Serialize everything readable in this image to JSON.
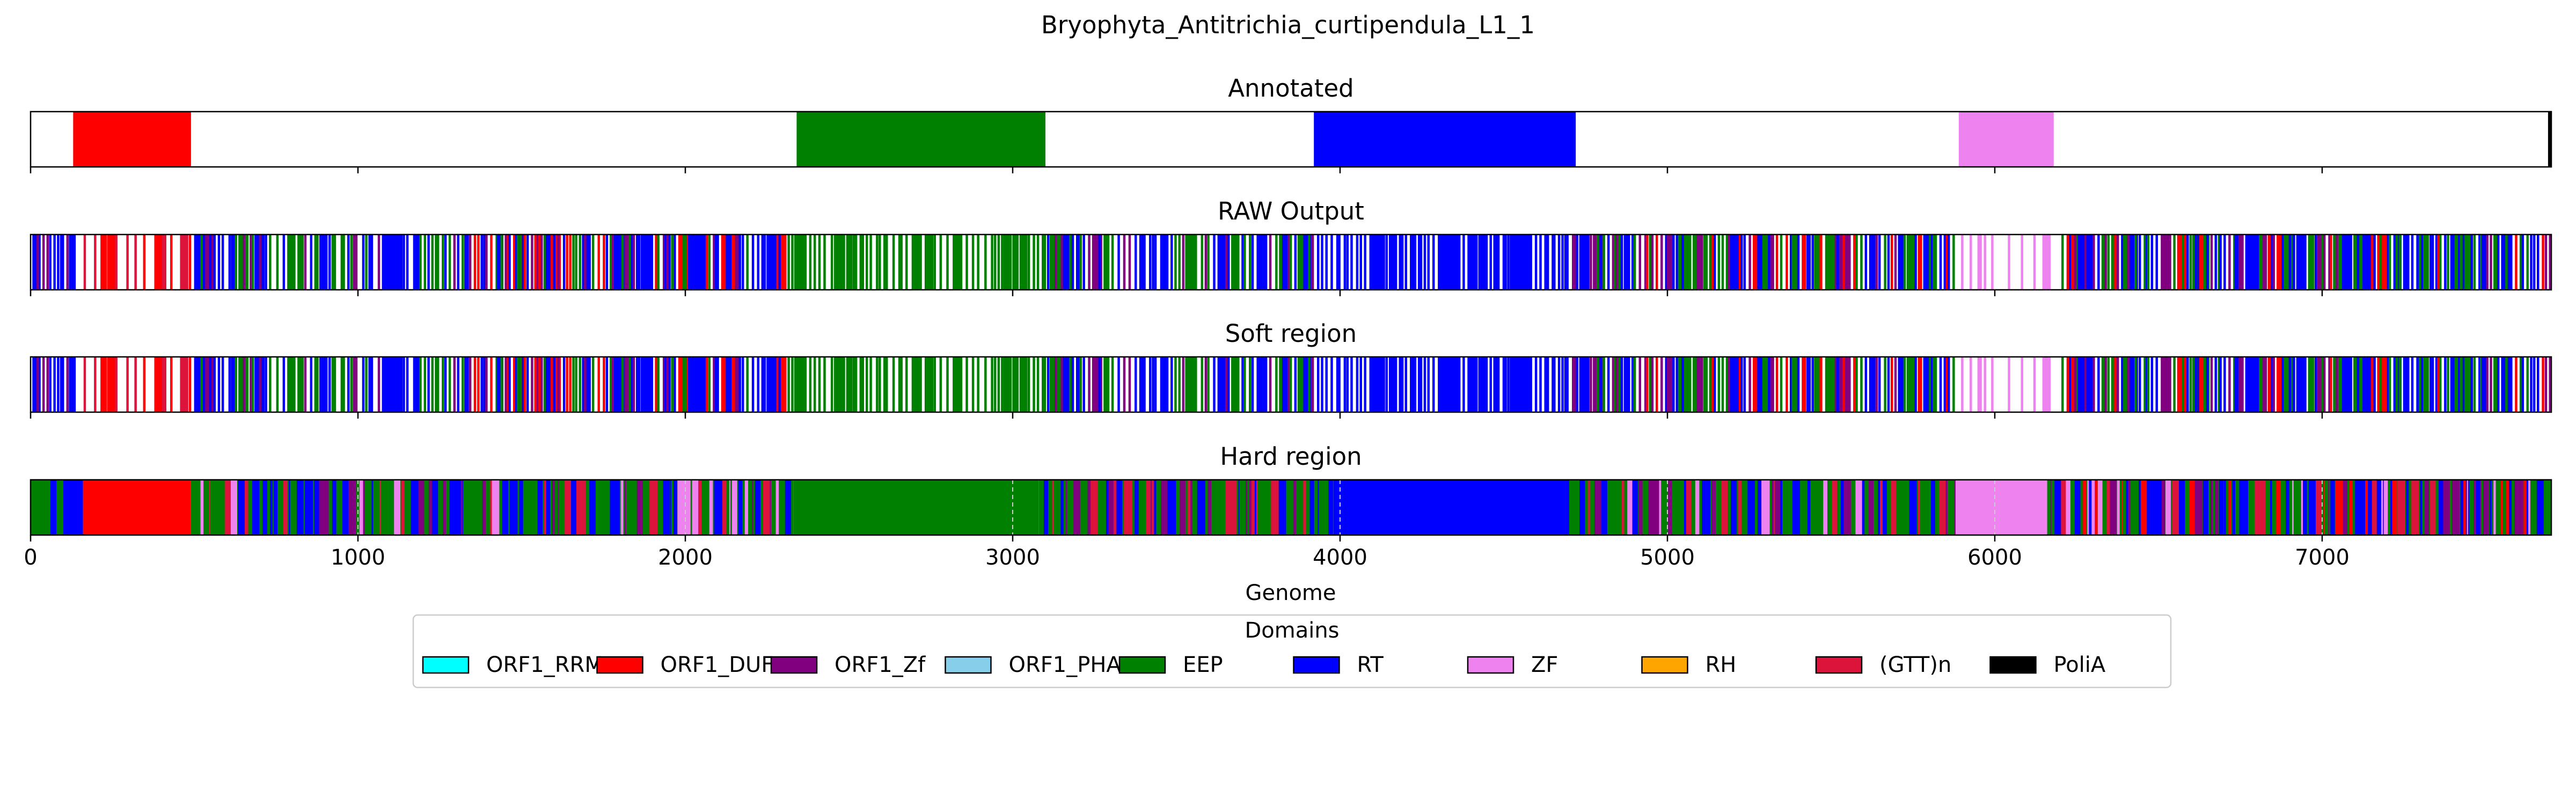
{
  "chart_data": {
    "type": "genome-track",
    "title": "Bryophyta_Antitrichia_curtipendula_L1_1",
    "xlabel": "Genome",
    "xlim": [
      0,
      7700
    ],
    "xticks": [
      0,
      1000,
      2000,
      3000,
      4000,
      5000,
      6000,
      7000
    ],
    "xtick_labels": [
      "0",
      "1000",
      "2000",
      "3000",
      "4000",
      "5000",
      "6000",
      "7000"
    ],
    "legend": {
      "title": "Domains",
      "placement": "bottom-center",
      "entries": [
        {
          "name": "ORF1_RRM",
          "color": "#00ffff"
        },
        {
          "name": "ORF1_DUF",
          "color": "#ff0000"
        },
        {
          "name": "ORF1_Zf",
          "color": "#800080"
        },
        {
          "name": "ORF1_PHA",
          "color": "#87ceeb"
        },
        {
          "name": "EEP",
          "color": "#008000"
        },
        {
          "name": "RT",
          "color": "#0000ff"
        },
        {
          "name": "ZF",
          "color": "#ee82ee"
        },
        {
          "name": "RH",
          "color": "#ffa500"
        },
        {
          "name": "(GTT)n",
          "color": "#dc143c"
        },
        {
          "name": "PoliA",
          "color": "#000000"
        }
      ]
    },
    "panels": [
      {
        "title": "Annotated",
        "mode": "segments",
        "segments": [
          {
            "domain": "ORF1_DUF",
            "start": 130,
            "end": 490
          },
          {
            "domain": "EEP",
            "start": 2340,
            "end": 3100
          },
          {
            "domain": "RT",
            "start": 3920,
            "end": 4720
          },
          {
            "domain": "ZF",
            "start": 5890,
            "end": 6180
          },
          {
            "domain": "PoliA",
            "start": 7690,
            "end": 7700
          }
        ]
      },
      {
        "title": "RAW Output",
        "mode": "lines",
        "regions": [
          {
            "start": 0,
            "end": 140,
            "colors": [
              "RT",
              "EEP",
              "RT",
              "ORF1_Zf",
              "RT"
            ],
            "density": 0.08
          },
          {
            "start": 140,
            "end": 490,
            "colors": [
              "ORF1_DUF",
              "(GTT)n"
            ],
            "density": 0.04
          },
          {
            "start": 490,
            "end": 1300,
            "colors": [
              "RT",
              "EEP",
              "RT",
              "ORF1_Zf",
              "RT",
              "EEP"
            ],
            "density": 0.07
          },
          {
            "start": 1300,
            "end": 2330,
            "colors": [
              "RT",
              "EEP",
              "RT",
              "ORF1_Zf",
              "ORF1_DUF",
              "RT"
            ],
            "density": 0.09
          },
          {
            "start": 2330,
            "end": 3100,
            "colors": [
              "EEP"
            ],
            "density": 0.07
          },
          {
            "start": 3100,
            "end": 3920,
            "colors": [
              "EEP",
              "RT",
              "EEP",
              "ORF1_Zf",
              "RT"
            ],
            "density": 0.08
          },
          {
            "start": 3920,
            "end": 4700,
            "colors": [
              "RT"
            ],
            "density": 0.09
          },
          {
            "start": 4700,
            "end": 5880,
            "colors": [
              "RT",
              "EEP",
              "RT",
              "ORF1_Zf",
              "ORF1_DUF",
              "EEP"
            ],
            "density": 0.09
          },
          {
            "start": 5880,
            "end": 6200,
            "colors": [
              "ZF"
            ],
            "density": 0.025
          },
          {
            "start": 6200,
            "end": 7700,
            "colors": [
              "RT",
              "EEP",
              "RT",
              "ORF1_Zf",
              "ORF1_DUF",
              "EEP",
              "RT"
            ],
            "density": 0.1
          }
        ]
      },
      {
        "title": "Soft region",
        "mode": "lines",
        "regions": [
          {
            "start": 0,
            "end": 140,
            "colors": [
              "RT",
              "EEP",
              "RT",
              "ORF1_Zf",
              "RT"
            ],
            "density": 0.08
          },
          {
            "start": 140,
            "end": 490,
            "colors": [
              "ORF1_DUF",
              "(GTT)n"
            ],
            "density": 0.04
          },
          {
            "start": 490,
            "end": 1300,
            "colors": [
              "RT",
              "EEP",
              "RT",
              "ORF1_Zf",
              "RT",
              "EEP"
            ],
            "density": 0.07
          },
          {
            "start": 1300,
            "end": 2330,
            "colors": [
              "RT",
              "EEP",
              "RT",
              "ORF1_Zf",
              "ORF1_DUF",
              "RT"
            ],
            "density": 0.09
          },
          {
            "start": 2330,
            "end": 3100,
            "colors": [
              "EEP"
            ],
            "density": 0.07
          },
          {
            "start": 3100,
            "end": 3920,
            "colors": [
              "EEP",
              "RT",
              "EEP",
              "ORF1_Zf",
              "RT"
            ],
            "density": 0.08
          },
          {
            "start": 3920,
            "end": 4700,
            "colors": [
              "RT"
            ],
            "density": 0.09
          },
          {
            "start": 4700,
            "end": 5880,
            "colors": [
              "RT",
              "EEP",
              "RT",
              "ORF1_Zf",
              "ORF1_DUF",
              "EEP"
            ],
            "density": 0.09
          },
          {
            "start": 5880,
            "end": 6200,
            "colors": [
              "ZF"
            ],
            "density": 0.025
          },
          {
            "start": 6200,
            "end": 7700,
            "colors": [
              "RT",
              "EEP",
              "RT",
              "ORF1_Zf",
              "ORF1_DUF",
              "EEP",
              "RT"
            ],
            "density": 0.1
          }
        ]
      },
      {
        "title": "Hard region",
        "mode": "filled",
        "segments": [
          {
            "domain": "EEP",
            "start": 0,
            "end": 60
          },
          {
            "domain": "RT",
            "start": 60,
            "end": 80
          },
          {
            "domain": "EEP",
            "start": 80,
            "end": 100
          },
          {
            "domain": "RT",
            "start": 100,
            "end": 160
          },
          {
            "domain": "ORF1_DUF",
            "start": 160,
            "end": 490
          },
          {
            "domain": "EEP",
            "start": 490,
            "end": 2330
          },
          {
            "domain": "EEP",
            "start": 2330,
            "end": 3080
          },
          {
            "domain": "EEP",
            "start": 3080,
            "end": 3980
          },
          {
            "domain": "RT",
            "start": 3980,
            "end": 4700
          },
          {
            "domain": "EEP",
            "start": 4700,
            "end": 5880
          },
          {
            "domain": "ZF",
            "start": 5880,
            "end": 6160
          },
          {
            "domain": "EEP",
            "start": 6160,
            "end": 7700
          }
        ],
        "stripes": [
          {
            "start": 490,
            "end": 2330,
            "colors": [
              "RT",
              "EEP",
              "RT",
              "ORF1_Zf",
              "(GTT)n",
              "RT",
              "ZF"
            ],
            "density": 0.05
          },
          {
            "start": 3080,
            "end": 3980,
            "colors": [
              "RT",
              "EEP",
              "(GTT)n",
              "RT",
              "ORF1_Zf"
            ],
            "density": 0.05
          },
          {
            "start": 4700,
            "end": 5880,
            "colors": [
              "RT",
              "EEP",
              "(GTT)n",
              "RT",
              "ORF1_Zf",
              "ZF"
            ],
            "density": 0.05
          },
          {
            "start": 6160,
            "end": 7700,
            "colors": [
              "RT",
              "EEP",
              "(GTT)n",
              "RT",
              "ORF1_Zf",
              "ZF",
              "ORF1_DUF"
            ],
            "density": 0.06
          }
        ],
        "dashed_ticks": [
          1000,
          2000,
          3000,
          4000,
          5000,
          6000,
          7000
        ]
      }
    ]
  }
}
